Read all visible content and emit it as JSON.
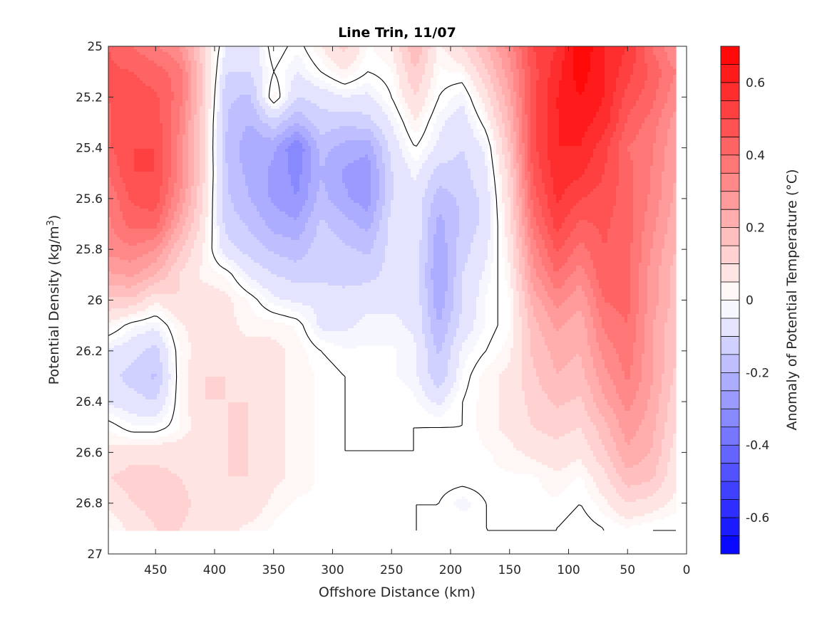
{
  "chart_data": {
    "type": "heatmap",
    "title": "Line Trin, 11/07",
    "xlabel": "Offshore Distance (km)",
    "ylabel": "Potential Density (kg/m",
    "ylabel_sup": "3",
    "ylabel_end": ")",
    "colorbar_label": "Anomaly of Potential Temperature (°C)",
    "xlim": [
      490,
      0
    ],
    "ylim": [
      25,
      27
    ],
    "x_reversed": true,
    "y_reversed": true,
    "xticks": [
      450,
      400,
      350,
      300,
      250,
      200,
      150,
      100,
      50,
      0
    ],
    "yticks": [
      25,
      25.2,
      25.4,
      25.6,
      25.8,
      26,
      26.2,
      26.4,
      26.6,
      26.8,
      27
    ],
    "ytick_labels": [
      "25",
      "25.2",
      "25.4",
      "25.6",
      "25.8",
      "26",
      "26.2",
      "26.4",
      "26.6",
      "26.8",
      "27"
    ],
    "clim": [
      -0.7,
      0.7
    ],
    "colorbar_ticks": [
      0.6,
      0.4,
      0.2,
      0,
      -0.2,
      -0.4,
      -0.6
    ],
    "colorbar_tick_labels": [
      "0.6",
      "0.4",
      "0.2",
      "0",
      "-0.2",
      "-0.4",
      "-0.6"
    ],
    "contour_levels": 28,
    "colormap": {
      "negative": "#0000ff",
      "zero": "#ffffff",
      "positive": "#ff0000"
    },
    "data_extent": {
      "x_max": 490,
      "x_min": 10,
      "y_min": 25,
      "y_max": 26.9
    },
    "grid_x": [
      490,
      470,
      450,
      430,
      410,
      390,
      370,
      350,
      330,
      310,
      290,
      270,
      250,
      230,
      210,
      190,
      170,
      150,
      130,
      110,
      90,
      70,
      50,
      30,
      10
    ],
    "grid_y": [
      25.0,
      25.1,
      25.2,
      25.3,
      25.4,
      25.5,
      25.6,
      25.7,
      25.8,
      25.9,
      26.0,
      26.1,
      26.2,
      26.3,
      26.4,
      26.5,
      26.6,
      26.7,
      26.8,
      26.9
    ],
    "values": [
      [
        0.45,
        0.4,
        0.36,
        0.3,
        0.12,
        -0.05,
        -0.1,
        0.03,
        -0.02,
        0.05,
        0.12,
        0.02,
        0.05,
        0.2,
        0.04,
        0.1,
        0.2,
        0.32,
        0.5,
        0.55,
        0.7,
        0.6,
        0.55,
        0.4,
        0.3
      ],
      [
        0.46,
        0.45,
        0.42,
        0.38,
        0.14,
        -0.1,
        -0.1,
        0.0,
        -0.05,
        0.0,
        0.05,
        0.0,
        0.02,
        0.15,
        0.02,
        0.03,
        0.14,
        0.28,
        0.48,
        0.58,
        0.68,
        0.6,
        0.52,
        0.44,
        0.35
      ],
      [
        0.45,
        0.48,
        0.46,
        0.38,
        0.14,
        -0.14,
        -0.16,
        0.04,
        -0.1,
        -0.08,
        -0.05,
        -0.06,
        0.0,
        0.1,
        0.0,
        -0.04,
        0.08,
        0.24,
        0.48,
        0.6,
        0.65,
        0.6,
        0.48,
        0.42,
        0.32
      ],
      [
        0.44,
        0.5,
        0.48,
        0.35,
        0.12,
        -0.15,
        -0.2,
        -0.12,
        -0.2,
        -0.12,
        -0.14,
        -0.12,
        -0.05,
        0.05,
        -0.04,
        -0.08,
        0.02,
        0.2,
        0.48,
        0.6,
        0.62,
        0.58,
        0.44,
        0.38,
        0.28
      ],
      [
        0.44,
        0.5,
        0.5,
        0.34,
        0.12,
        -0.16,
        -0.24,
        -0.24,
        -0.35,
        -0.18,
        -0.22,
        -0.24,
        -0.08,
        0.0,
        -0.06,
        -0.1,
        -0.04,
        0.16,
        0.48,
        0.6,
        0.6,
        0.52,
        0.4,
        0.36,
        0.26
      ],
      [
        0.4,
        0.5,
        0.5,
        0.34,
        0.12,
        -0.15,
        -0.22,
        -0.26,
        -0.32,
        -0.2,
        -0.26,
        -0.28,
        -0.1,
        -0.04,
        -0.12,
        -0.12,
        -0.06,
        0.12,
        0.46,
        0.58,
        0.56,
        0.5,
        0.42,
        0.35,
        0.25
      ],
      [
        0.36,
        0.46,
        0.48,
        0.3,
        0.1,
        -0.14,
        -0.2,
        -0.26,
        -0.3,
        -0.18,
        -0.24,
        -0.28,
        -0.1,
        -0.06,
        -0.18,
        -0.14,
        -0.08,
        0.1,
        0.42,
        0.56,
        0.5,
        0.48,
        0.42,
        0.34,
        0.24
      ],
      [
        0.34,
        0.42,
        0.42,
        0.24,
        0.08,
        -0.12,
        -0.16,
        -0.22,
        -0.24,
        -0.14,
        -0.18,
        -0.22,
        -0.08,
        -0.06,
        -0.22,
        -0.14,
        -0.08,
        0.08,
        0.38,
        0.52,
        0.44,
        0.46,
        0.42,
        0.32,
        0.22
      ],
      [
        0.32,
        0.34,
        0.3,
        0.16,
        0.05,
        -0.08,
        -0.12,
        -0.16,
        -0.18,
        -0.12,
        -0.14,
        -0.16,
        -0.08,
        -0.06,
        -0.24,
        -0.12,
        -0.06,
        0.06,
        0.32,
        0.46,
        0.38,
        0.45,
        0.42,
        0.3,
        0.2
      ],
      [
        0.24,
        0.26,
        0.2,
        0.1,
        0.04,
        0.02,
        -0.06,
        -0.1,
        -0.12,
        -0.12,
        -0.12,
        -0.12,
        -0.08,
        -0.06,
        -0.26,
        -0.1,
        -0.04,
        0.04,
        0.28,
        0.4,
        0.32,
        0.44,
        0.42,
        0.28,
        0.18
      ],
      [
        0.14,
        0.14,
        0.06,
        0.1,
        0.08,
        0.06,
        0.02,
        -0.04,
        -0.06,
        -0.06,
        -0.08,
        -0.06,
        -0.06,
        -0.06,
        -0.24,
        -0.1,
        -0.02,
        0.02,
        0.22,
        0.32,
        0.26,
        0.4,
        0.42,
        0.28,
        0.18
      ],
      [
        0.04,
        -0.02,
        -0.04,
        0.04,
        0.08,
        0.06,
        0.04,
        0.04,
        0.02,
        -0.06,
        -0.06,
        -0.04,
        -0.04,
        -0.06,
        -0.2,
        -0.08,
        -0.02,
        0.02,
        0.18,
        0.26,
        0.22,
        0.36,
        0.4,
        0.26,
        0.16
      ],
      [
        -0.06,
        -0.08,
        -0.12,
        0.02,
        0.08,
        0.06,
        0.06,
        0.06,
        0.04,
        0.0,
        -0.02,
        -0.02,
        -0.02,
        -0.04,
        -0.16,
        -0.04,
        0.0,
        0.04,
        0.16,
        0.22,
        0.2,
        0.32,
        0.38,
        0.26,
        0.16
      ],
      [
        -0.08,
        -0.12,
        -0.16,
        0.02,
        0.1,
        0.1,
        0.08,
        0.06,
        0.04,
        0.02,
        0.0,
        0.0,
        -0.02,
        -0.04,
        -0.14,
        -0.02,
        0.04,
        0.06,
        0.14,
        0.2,
        0.18,
        0.28,
        0.36,
        0.26,
        0.14
      ],
      [
        -0.06,
        -0.08,
        -0.1,
        0.02,
        0.1,
        0.1,
        0.1,
        0.06,
        0.04,
        0.02,
        0.0,
        0.0,
        0.0,
        -0.02,
        -0.06,
        0.0,
        0.04,
        0.06,
        0.12,
        0.16,
        0.14,
        0.24,
        0.32,
        0.24,
        0.12
      ],
      [
        0.02,
        -0.02,
        -0.02,
        0.02,
        0.08,
        0.1,
        0.1,
        0.06,
        0.04,
        0.02,
        0.0,
        0.0,
        0.0,
        0.0,
        0.0,
        0.0,
        0.04,
        0.06,
        0.1,
        0.12,
        0.1,
        0.18,
        0.28,
        0.22,
        0.1
      ],
      [
        0.06,
        0.08,
        0.08,
        0.08,
        0.08,
        0.1,
        0.1,
        0.06,
        0.04,
        0.02,
        0.0,
        0.0,
        0.0,
        0.0,
        0.02,
        0.02,
        0.02,
        0.04,
        0.06,
        0.08,
        0.06,
        0.14,
        0.24,
        0.2,
        0.08
      ],
      [
        0.1,
        0.12,
        0.12,
        0.1,
        0.08,
        0.1,
        0.1,
        0.06,
        0.04,
        0.02,
        0.0,
        0.02,
        0.02,
        0.0,
        0.02,
        0.02,
        0.02,
        0.02,
        0.02,
        0.04,
        0.02,
        0.08,
        0.18,
        0.16,
        0.06
      ],
      [
        0.06,
        0.1,
        0.12,
        0.12,
        0.08,
        0.08,
        0.08,
        0.04,
        0.02,
        0.02,
        0.0,
        0.02,
        0.02,
        0.0,
        0.0,
        -0.04,
        0.0,
        0.02,
        0.02,
        0.02,
        0.0,
        0.04,
        0.1,
        0.08,
        0.04
      ],
      [
        0.02,
        0.06,
        0.1,
        0.1,
        0.08,
        0.06,
        0.04,
        0.02,
        0.0,
        0.02,
        0.0,
        0.02,
        0.02,
        0.0,
        0.0,
        0.0,
        0.0,
        0.0,
        0.0,
        0.0,
        -0.02,
        0.0,
        0.02,
        0.0,
        0.0
      ]
    ]
  }
}
